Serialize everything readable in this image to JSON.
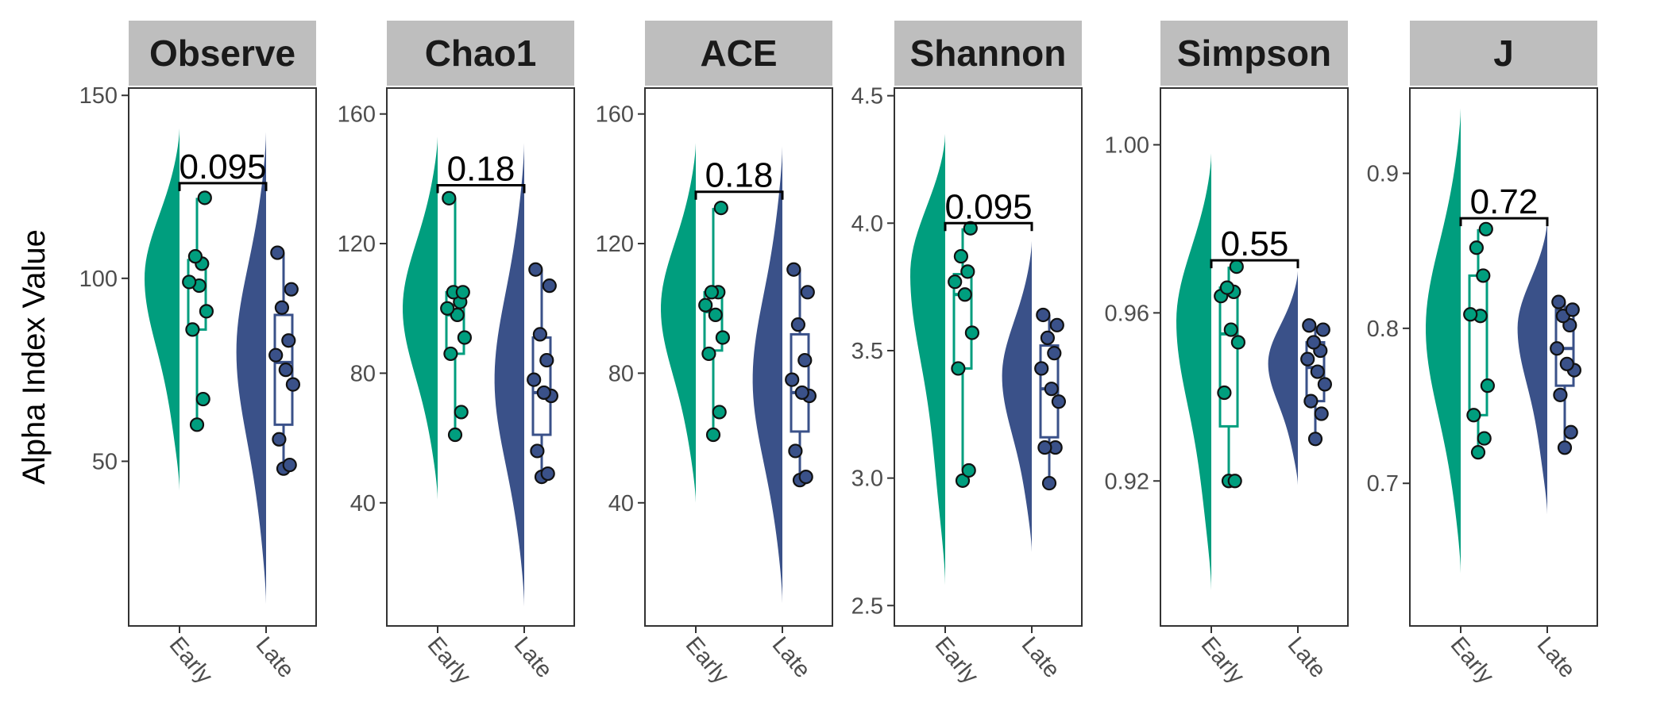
{
  "figure": {
    "ylabel": "Alpha Index Value"
  },
  "colors": {
    "Early": "#009E7E",
    "Late": "#3A5189",
    "strip_bg": "#BEBEBE",
    "panel_border": "#333333"
  },
  "chart_data": [
    {
      "type": "raincloud",
      "title": "Observe",
      "categories": [
        "Early",
        "Late"
      ],
      "ylim": [
        5,
        152
      ],
      "yticks": [
        50,
        100,
        150
      ],
      "pvalue": "0.095",
      "bracket_y": 126,
      "series": [
        {
          "name": "Early",
          "points": [
            60,
            67,
            86,
            91,
            98,
            99,
            104,
            106,
            122
          ],
          "box": {
            "q1": 86,
            "median": 98,
            "q3": 105,
            "lo": 60,
            "hi": 122
          },
          "density": {
            "min": 42,
            "max": 141,
            "peak": 100,
            "width": 1.0
          }
        },
        {
          "name": "Late",
          "points": [
            48,
            49,
            56,
            71,
            75,
            79,
            83,
            92,
            97,
            107
          ],
          "box": {
            "q1": 60,
            "median": 77,
            "q3": 90,
            "lo": 48,
            "hi": 107
          },
          "density": {
            "min": 11,
            "max": 140,
            "peak": 80,
            "width": 0.85
          }
        }
      ]
    },
    {
      "type": "raincloud",
      "title": "Chao1",
      "categories": [
        "Early",
        "Late"
      ],
      "ylim": [
        2,
        168
      ],
      "yticks": [
        40,
        80,
        120,
        160
      ],
      "pvalue": "0.18",
      "bracket_y": 138,
      "series": [
        {
          "name": "Early",
          "points": [
            61,
            68,
            86,
            91,
            98,
            100,
            102,
            105,
            105,
            134
          ],
          "box": {
            "q1": 86,
            "median": 98,
            "q3": 105,
            "lo": 61,
            "hi": 134
          },
          "density": {
            "min": 41,
            "max": 153,
            "peak": 100,
            "width": 1.0
          }
        },
        {
          "name": "Late",
          "points": [
            48,
            49,
            56,
            73,
            74,
            78,
            84,
            92,
            107,
            112
          ],
          "box": {
            "q1": 61,
            "median": 74,
            "q3": 91,
            "lo": 48,
            "hi": 112
          },
          "density": {
            "min": 8,
            "max": 151,
            "peak": 78,
            "width": 0.85
          }
        }
      ]
    },
    {
      "type": "raincloud",
      "title": "ACE",
      "categories": [
        "Early",
        "Late"
      ],
      "ylim": [
        2,
        168
      ],
      "yticks": [
        40,
        80,
        120,
        160
      ],
      "pvalue": "0.18",
      "bracket_y": 136,
      "series": [
        {
          "name": "Early",
          "points": [
            61,
            68,
            86,
            91,
            98,
            101,
            105,
            105,
            131
          ],
          "box": {
            "q1": 87,
            "median": 99,
            "q3": 105,
            "lo": 61,
            "hi": 131
          },
          "density": {
            "min": 40,
            "max": 151,
            "peak": 100,
            "width": 1.0
          }
        },
        {
          "name": "Late",
          "points": [
            47,
            48,
            56,
            73,
            74,
            78,
            84,
            95,
            105,
            112
          ],
          "box": {
            "q1": 62,
            "median": 74,
            "q3": 92,
            "lo": 47,
            "hi": 112
          },
          "density": {
            "min": 9,
            "max": 150,
            "peak": 78,
            "width": 0.85
          }
        }
      ]
    },
    {
      "type": "raincloud",
      "title": "Shannon",
      "categories": [
        "Early",
        "Late"
      ],
      "ylim": [
        2.42,
        4.53
      ],
      "yticks": [
        2.5,
        3.0,
        3.5,
        4.0,
        4.5
      ],
      "ytick_labels": [
        "2.5",
        "3.0",
        "3.5",
        "4.0",
        "4.5"
      ],
      "pvalue": "0.095",
      "bracket_y": 4.0,
      "series": [
        {
          "name": "Early",
          "points": [
            2.99,
            3.03,
            3.43,
            3.57,
            3.72,
            3.77,
            3.81,
            3.87,
            3.98
          ],
          "box": {
            "q1": 3.43,
            "median": 3.72,
            "q3": 3.8,
            "lo": 3.03,
            "hi": 3.98
          },
          "density": {
            "min": 2.58,
            "max": 4.35,
            "peak": 3.8,
            "width": 1.0
          }
        },
        {
          "name": "Late",
          "points": [
            2.98,
            3.12,
            3.12,
            3.3,
            3.35,
            3.43,
            3.49,
            3.55,
            3.6,
            3.64
          ],
          "box": {
            "q1": 3.16,
            "median": 3.35,
            "q3": 3.52,
            "lo": 2.98,
            "hi": 3.64
          },
          "density": {
            "min": 2.71,
            "max": 3.93,
            "peak": 3.4,
            "width": 0.85
          }
        }
      ]
    },
    {
      "type": "raincloud",
      "title": "Simpson",
      "categories": [
        "Early",
        "Late"
      ],
      "ylim": [
        0.8855,
        1.0135
      ],
      "yticks": [
        0.92,
        0.96,
        1.0
      ],
      "ytick_labels": [
        "0.92",
        "0.96",
        "1.00"
      ],
      "pvalue": "0.55",
      "bracket_y": 0.9725,
      "series": [
        {
          "name": "Early",
          "points": [
            0.92,
            0.92,
            0.941,
            0.953,
            0.956,
            0.964,
            0.965,
            0.966,
            0.971
          ],
          "box": {
            "q1": 0.933,
            "median": 0.955,
            "q3": 0.966,
            "lo": 0.92,
            "hi": 0.971
          },
          "density": {
            "min": 0.894,
            "max": 0.998,
            "peak": 0.958,
            "width": 1.0
          }
        },
        {
          "name": "Late",
          "points": [
            0.93,
            0.936,
            0.939,
            0.943,
            0.946,
            0.949,
            0.951,
            0.953,
            0.956,
            0.957
          ],
          "box": {
            "q1": 0.939,
            "median": 0.947,
            "q3": 0.953,
            "lo": 0.93,
            "hi": 0.957
          },
          "density": {
            "min": 0.919,
            "max": 0.97,
            "peak": 0.948,
            "width": 0.85
          }
        }
      ]
    },
    {
      "type": "raincloud",
      "title": "J",
      "categories": [
        "Early",
        "Late"
      ],
      "ylim": [
        0.608,
        0.955
      ],
      "yticks": [
        0.7,
        0.8,
        0.9
      ],
      "ytick_labels": [
        "0.7",
        "0.8",
        "0.9"
      ],
      "pvalue": "0.72",
      "bracket_y": 0.871,
      "series": [
        {
          "name": "Early",
          "points": [
            0.72,
            0.729,
            0.744,
            0.763,
            0.808,
            0.809,
            0.834,
            0.852,
            0.864
          ],
          "box": {
            "q1": 0.744,
            "median": 0.809,
            "q3": 0.834,
            "lo": 0.72,
            "hi": 0.864
          },
          "density": {
            "min": 0.642,
            "max": 0.942,
            "peak": 0.8,
            "width": 1.0
          }
        },
        {
          "name": "Late",
          "points": [
            0.723,
            0.733,
            0.757,
            0.773,
            0.777,
            0.787,
            0.802,
            0.808,
            0.812,
            0.817
          ],
          "box": {
            "q1": 0.763,
            "median": 0.787,
            "q3": 0.812,
            "lo": 0.723,
            "hi": 0.817
          },
          "density": {
            "min": 0.68,
            "max": 0.87,
            "peak": 0.8,
            "width": 0.85
          }
        }
      ]
    }
  ]
}
